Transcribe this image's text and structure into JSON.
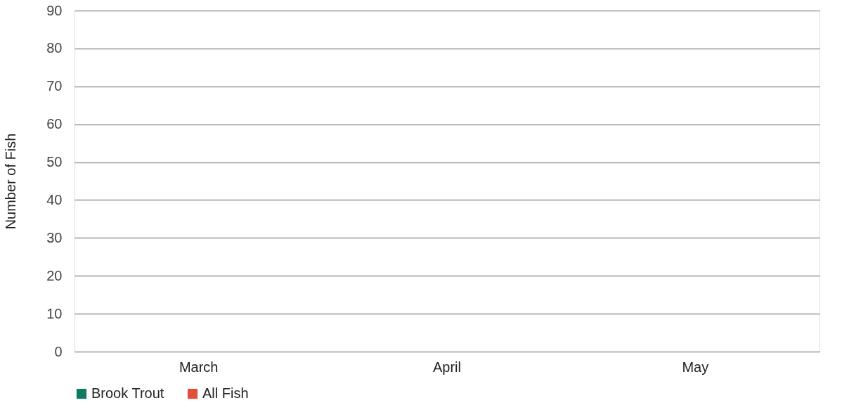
{
  "chart_data": {
    "type": "bar",
    "ylabel": "Number of Fish",
    "categories": [
      "March",
      "April",
      "May"
    ],
    "series": [
      {
        "name": "Brook Trout",
        "color": "#0e7a62",
        "values": [
          null,
          null,
          null
        ]
      },
      {
        "name": "All Fish",
        "color": "#e2503c",
        "values": [
          null,
          null,
          null
        ]
      }
    ],
    "ylim": [
      0,
      90
    ],
    "yticks": [
      0,
      10,
      20,
      30,
      40,
      50,
      60,
      70,
      80,
      90
    ],
    "grid": "y",
    "legend": "bottom"
  }
}
